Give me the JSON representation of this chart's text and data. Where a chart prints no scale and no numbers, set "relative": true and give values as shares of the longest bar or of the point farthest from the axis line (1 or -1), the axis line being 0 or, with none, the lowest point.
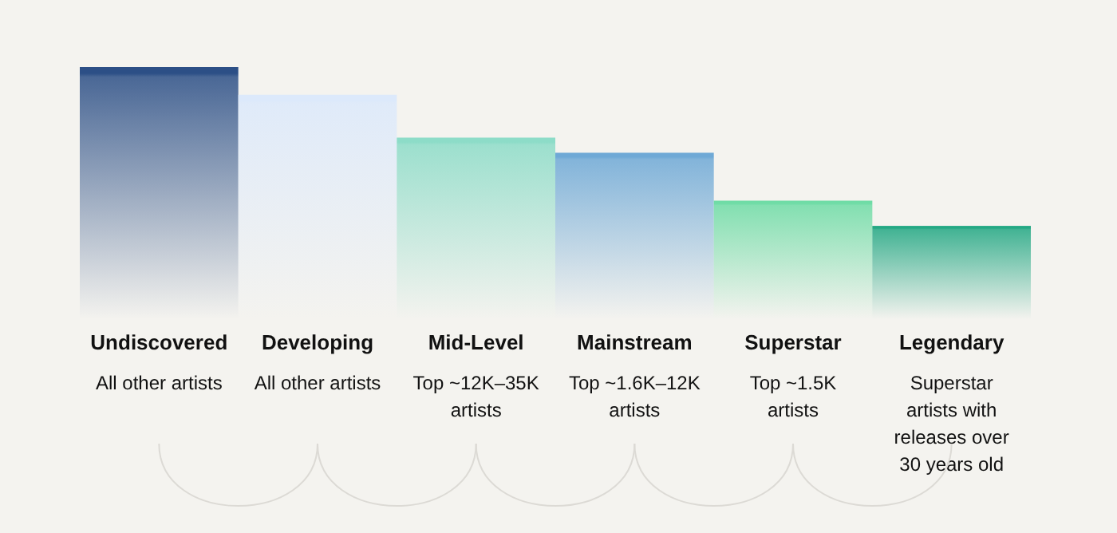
{
  "chart_data": {
    "type": "bar",
    "relative": true,
    "categories": [
      "Undiscovered",
      "Developing",
      "Mid-Level",
      "Mainstream",
      "Superstar",
      "Legendary"
    ],
    "values": [
      1,
      0.89,
      0.72,
      0.66,
      0.47,
      0.37
    ],
    "colors": [
      "#2c4f86",
      "#dce9fb",
      "#8ddcc8",
      "#6fa9d6",
      "#6fdca6",
      "#24a884"
    ],
    "annotations": [
      "All other artists",
      "All other artists",
      "Top ~12K–35K artists",
      "Top ~1.6K–12K artists",
      "Top ~1.5K artists",
      "Superstar artists with releases over 30 years old"
    ]
  }
}
